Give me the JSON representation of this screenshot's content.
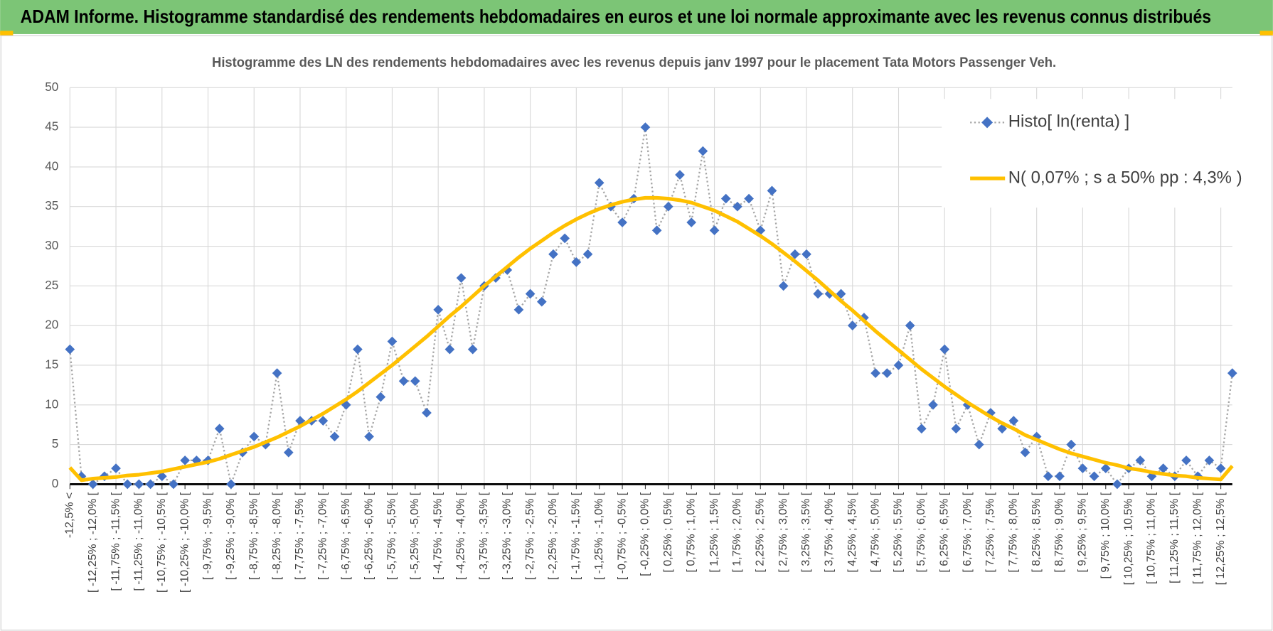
{
  "header": {
    "title": "ADAM Informe. Histogramme standardisé des rendements hebdomadaires en euros et une loi normale approximante avec les revenus connus distribués"
  },
  "chart_data": {
    "type": "line",
    "title": "Histogramme des LN des rendements hebdomadaires avec les revenus depuis janv 1997 pour le placement Tata Motors Passenger Veh.",
    "categories": [
      "-12,5% <",
      null,
      "[ -12,25% ; -12,0% [",
      null,
      "[ -11,75% ; -11,5% [",
      null,
      "[ -11,25% ; -11,0% [",
      null,
      "[ -10,75% ; -10,5% [",
      null,
      "[ -10,25% ; -10,0% [",
      null,
      "[ -9,75% ; -9,5% [",
      null,
      "[ -9,25% ; -9,0% [",
      null,
      "[ -8,75% ; -8,5% [",
      null,
      "[ -8,25% ; -8,0% [",
      null,
      "[ -7,75% ; -7,5% [",
      null,
      "[ -7,25% ; -7,0% [",
      null,
      "[ -6,75% ; -6,5% [",
      null,
      "[ -6,25% ; -6,0% [",
      null,
      "[ -5,75% ; -5,5% [",
      null,
      "[ -5,25% ; -5,0% [",
      null,
      "[ -4,75% ; -4,5% [",
      null,
      "[ -4,25% ; -4,0% [",
      null,
      "[ -3,75% ; -3,5% [",
      null,
      "[ -3,25% ; -3,0% [",
      null,
      "[ -2,75% ; -2,5% [",
      null,
      "[ -2,25% ; -2,0% [",
      null,
      "[ -1,75% ; -1,5% [",
      null,
      "[ -1,25% ; -1,0% [",
      null,
      "[ -0,75% ; -0,5% [",
      null,
      "[ -0,25% ; 0,0% [",
      null,
      "[ 0,25% ; 0,5% [",
      null,
      "[ 0,75% ; 1,0% [",
      null,
      "[ 1,25% ; 1,5% [",
      null,
      "[ 1,75% ; 2,0% [",
      null,
      "[ 2,25% ; 2,5% [",
      null,
      "[ 2,75% ; 3,0% [",
      null,
      "[ 3,25% ; 3,5% [",
      null,
      "[ 3,75% ; 4,0% [",
      null,
      "[ 4,25% ; 4,5% [",
      null,
      "[ 4,75% ; 5,0% [",
      null,
      "[ 5,25% ; 5,5% [",
      null,
      "[ 5,75% ; 6,0% [",
      null,
      "[ 6,25% ; 6,5% [",
      null,
      "[ 6,75% ; 7,0% [",
      null,
      "[ 7,25% ; 7,5% [",
      null,
      "[ 7,75% ; 8,0% [",
      null,
      "[ 8,25% ; 8,5% [",
      null,
      "[ 8,75% ; 9,0% [",
      null,
      "[ 9,25% ; 9,5% [",
      null,
      "[ 9,75% ; 10,0% [",
      null,
      "[ 10,25% ; 10,5% [",
      null,
      "[ 10,75% ; 11,0% [",
      null,
      "[ 11,25% ; 11,5% [",
      null,
      "[ 11,75% ; 12,0% [",
      null,
      "[ 12,25% ; 12,5% [",
      null
    ],
    "series": [
      {
        "name": "Histo[ ln(renta) ]",
        "color": "#4472c4",
        "marker": "diamond",
        "line_style": "dotted",
        "values": [
          17,
          1,
          0,
          1,
          2,
          0,
          0,
          0,
          1,
          0,
          3,
          3,
          3,
          7,
          0,
          4,
          6,
          5,
          14,
          4,
          8,
          8,
          8,
          6,
          10,
          17,
          6,
          11,
          18,
          13,
          13,
          9,
          22,
          17,
          26,
          17,
          25,
          26,
          27,
          22,
          24,
          23,
          29,
          31,
          28,
          29,
          38,
          35,
          33,
          36,
          45,
          32,
          35,
          39,
          33,
          42,
          32,
          36,
          35,
          36,
          32,
          37,
          25,
          29,
          29,
          24,
          24,
          24,
          20,
          21,
          14,
          14,
          15,
          20,
          7,
          10,
          17,
          7,
          10,
          5,
          9,
          7,
          8,
          4,
          6,
          1,
          1,
          5,
          2,
          1,
          2,
          0,
          2,
          3,
          1,
          2,
          1,
          3,
          1,
          3,
          2,
          14
        ]
      },
      {
        "name": "N( 0,07% ; s a 50% pp : 4,3% )",
        "color": "#ffc000",
        "line_style": "solid",
        "values": [
          2.1,
          0.5,
          0.7,
          0.8,
          0.9,
          1.1,
          1.2,
          1.4,
          1.6,
          1.9,
          2.2,
          2.5,
          2.8,
          3.2,
          3.7,
          4.2,
          4.7,
          5.3,
          5.9,
          6.6,
          7.3,
          8.1,
          8.9,
          9.8,
          10.7,
          11.7,
          12.8,
          13.9,
          15,
          16.2,
          17.4,
          18.6,
          19.9,
          21.2,
          22.4,
          23.7,
          25,
          26.2,
          27.4,
          28.6,
          29.7,
          30.7,
          31.7,
          32.6,
          33.4,
          34.1,
          34.7,
          35.2,
          35.6,
          35.9,
          36.1,
          36.1,
          36,
          35.8,
          35.5,
          35,
          34.5,
          33.8,
          33.1,
          32.2,
          31.3,
          30.3,
          29.2,
          28.1,
          26.9,
          25.7,
          24.4,
          23.1,
          21.9,
          20.6,
          19.3,
          18.1,
          16.9,
          15.7,
          14.5,
          13.4,
          12.3,
          11.3,
          10.3,
          9.4,
          8.5,
          7.7,
          7,
          6.2,
          5.6,
          5,
          4.4,
          3.9,
          3.5,
          3.1,
          2.7,
          2.4,
          2,
          1.8,
          1.5,
          1.3,
          1.1,
          1,
          0.8,
          0.7,
          0.6,
          2.3
        ]
      }
    ],
    "ylim": [
      0,
      50
    ],
    "yticks": [
      0,
      5,
      10,
      15,
      20,
      25,
      30,
      35,
      40,
      45,
      50
    ],
    "grid": true,
    "legend": "upper right"
  }
}
